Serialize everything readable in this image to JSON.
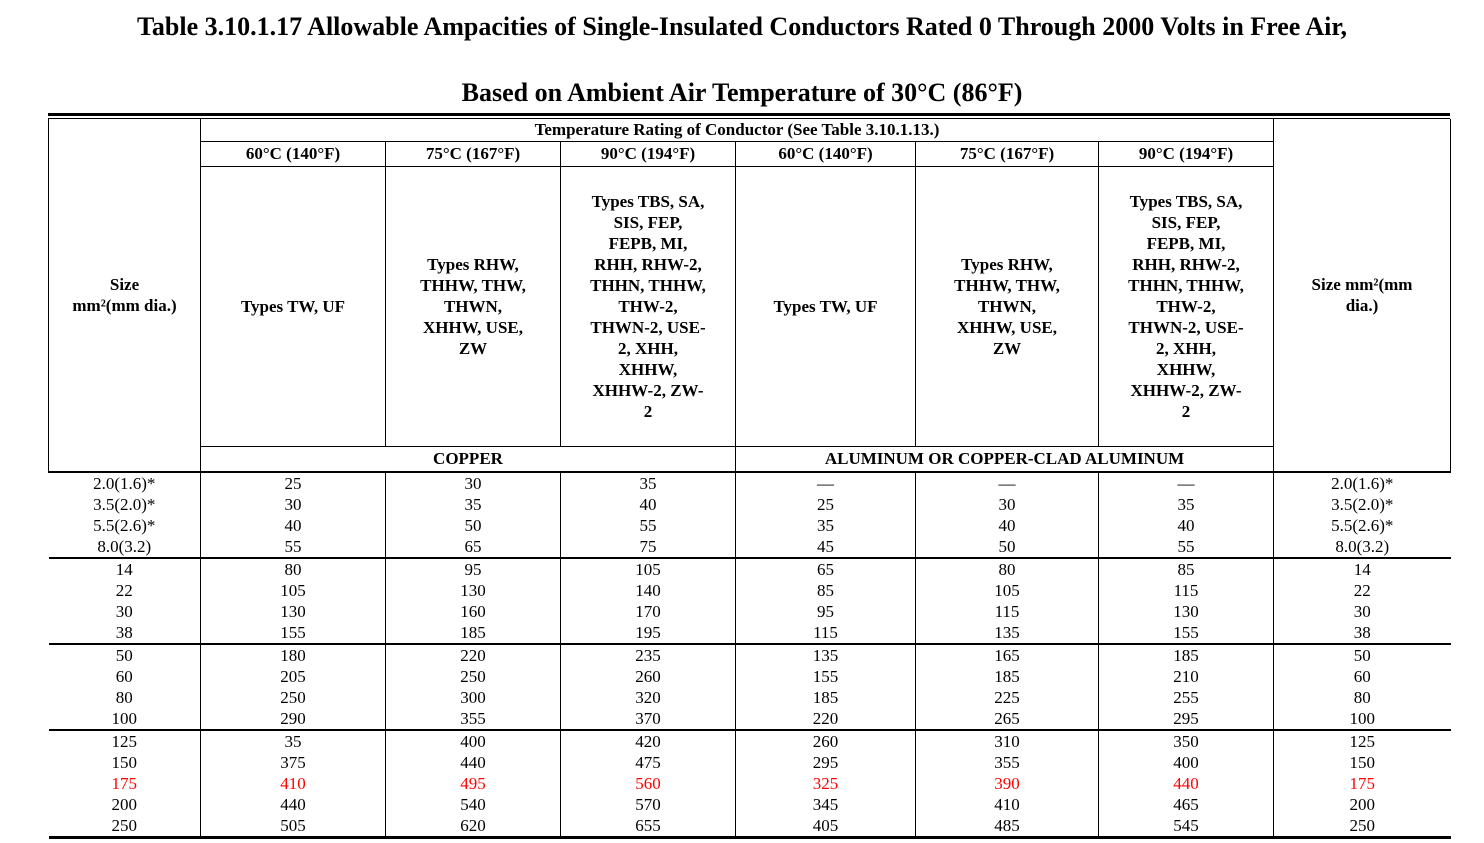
{
  "title": {
    "line1": "Table 3.10.1.17 Allowable Ampacities of Single-Insulated Conductors Rated 0 Through 2000 Volts in Free Air,",
    "line2": "Based on Ambient Air Temperature of 30°C (86°F)"
  },
  "table": {
    "temp_rating_header": "Temperature Rating of Conductor (See Table 3.10.1.13.)",
    "size_left": "Size\nmm²(mm dia.)",
    "size_right": "Size mm²(mm\ndia.)",
    "temp_headers": [
      "60°C (140°F)",
      "75°C (167°F)",
      "90°C (194°F)",
      "60°C (140°F)",
      "75°C (167°F)",
      "90°C (194°F)"
    ],
    "type_headers": [
      "Types TW, UF",
      "Types RHW,\nTHHW, THW,\nTHWN,\nXHHW, USE,\nZW",
      "Types TBS, SA,\nSIS, FEP,\nFEPB, MI,\nRHH, RHW-2,\nTHHN, THHW,\nTHW-2,\nTHWN-2, USE-\n2, XHH,\nXHHW,\nXHHW-2, ZW-\n2",
      "Types TW, UF",
      "Types RHW,\nTHHW, THW,\nTHWN,\nXHHW, USE,\nZW",
      "Types TBS, SA,\nSIS, FEP,\nFEPB, MI,\nRHH, RHW-2,\nTHHN, THHW,\nTHW-2,\nTHWN-2, USE-\n2, XHH,\nXHHW,\nXHHW-2, ZW-\n2"
    ],
    "material_copper": "COPPER",
    "material_aluminum": "ALUMINUM OR COPPER-CLAD ALUMINUM",
    "groups": [
      {
        "rows": [
          {
            "size": "2.0(1.6)*",
            "values": [
              "25",
              "30",
              "35",
              "—",
              "—",
              "—"
            ],
            "highlight": false
          },
          {
            "size": "3.5(2.0)*",
            "values": [
              "30",
              "35",
              "40",
              "25",
              "30",
              "35"
            ],
            "highlight": false
          },
          {
            "size": "5.5(2.6)*",
            "values": [
              "40",
              "50",
              "55",
              "35",
              "40",
              "40"
            ],
            "highlight": false
          },
          {
            "size": "8.0(3.2)",
            "values": [
              "55",
              "65",
              "75",
              "45",
              "50",
              "55"
            ],
            "highlight": false
          }
        ]
      },
      {
        "rows": [
          {
            "size": "14",
            "values": [
              "80",
              "95",
              "105",
              "65",
              "80",
              "85"
            ],
            "highlight": false
          },
          {
            "size": "22",
            "values": [
              "105",
              "130",
              "140",
              "85",
              "105",
              "115"
            ],
            "highlight": false
          },
          {
            "size": "30",
            "values": [
              "130",
              "160",
              "170",
              "95",
              "115",
              "130"
            ],
            "highlight": false
          },
          {
            "size": "38",
            "values": [
              "155",
              "185",
              "195",
              "115",
              "135",
              "155"
            ],
            "highlight": false
          }
        ]
      },
      {
        "rows": [
          {
            "size": "50",
            "values": [
              "180",
              "220",
              "235",
              "135",
              "165",
              "185"
            ],
            "highlight": false
          },
          {
            "size": "60",
            "values": [
              "205",
              "250",
              "260",
              "155",
              "185",
              "210"
            ],
            "highlight": false
          },
          {
            "size": "80",
            "values": [
              "250",
              "300",
              "320",
              "185",
              "225",
              "255"
            ],
            "highlight": false
          },
          {
            "size": "100",
            "values": [
              "290",
              "355",
              "370",
              "220",
              "265",
              "295"
            ],
            "highlight": false
          }
        ]
      },
      {
        "rows": [
          {
            "size": "125",
            "values": [
              "35",
              "400",
              "420",
              "260",
              "310",
              "350"
            ],
            "highlight": false
          },
          {
            "size": "150",
            "values": [
              "375",
              "440",
              "475",
              "295",
              "355",
              "400"
            ],
            "highlight": false
          },
          {
            "size": "175",
            "values": [
              "410",
              "495",
              "560",
              "325",
              "390",
              "440"
            ],
            "highlight": true
          },
          {
            "size": "200",
            "values": [
              "440",
              "540",
              "570",
              "345",
              "410",
              "465"
            ],
            "highlight": false
          },
          {
            "size": "250",
            "values": [
              "505",
              "620",
              "655",
              "405",
              "485",
              "545"
            ],
            "highlight": false
          }
        ]
      }
    ]
  },
  "colors": {
    "highlight_red": "#ff0000",
    "text": "#000000",
    "rule": "#000000"
  }
}
